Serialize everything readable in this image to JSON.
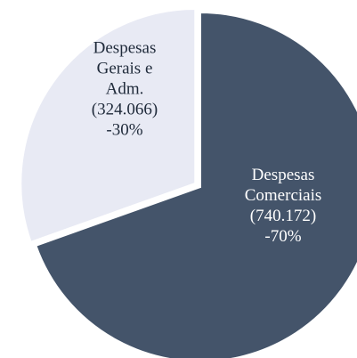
{
  "chart_data": {
    "type": "pie",
    "title": "",
    "slices": [
      {
        "label_lines": [
          "Despesas",
          "Comerciais",
          "(740.172)",
          "-70%"
        ],
        "category": "Despesas Comerciais",
        "value": 740172,
        "percent": 70,
        "color": "#44546a",
        "text_color": "#ffffff"
      },
      {
        "label_lines": [
          "Despesas",
          "Gerais e",
          "Adm.",
          "(324.066)",
          "-30%"
        ],
        "category": "Despesas Gerais e Adm.",
        "value": 324066,
        "percent": 30,
        "color": "#e8eaf4",
        "text_color": "#1f2a3a"
      }
    ],
    "legend": "none"
  }
}
